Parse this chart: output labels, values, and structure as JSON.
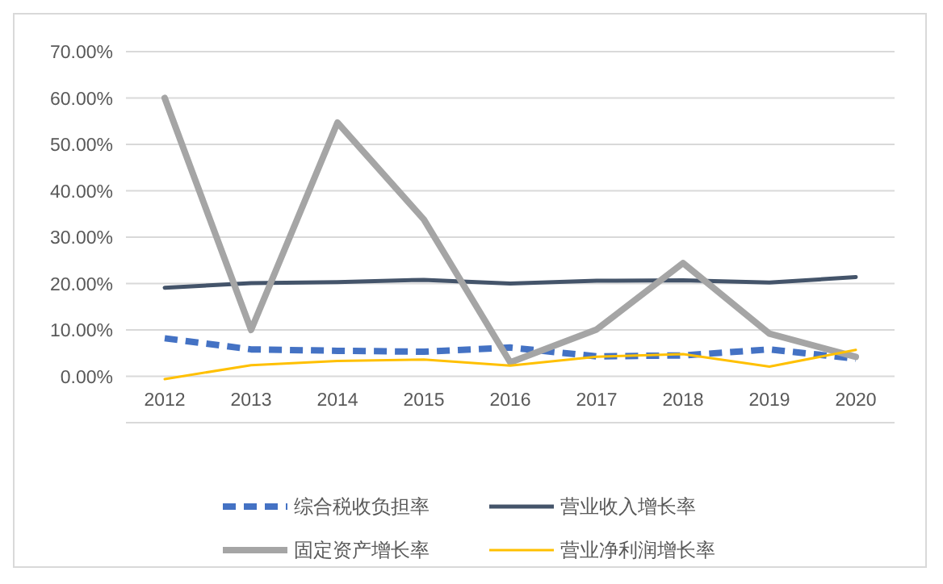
{
  "chart_data": {
    "type": "line",
    "categories": [
      "2012",
      "2013",
      "2014",
      "2015",
      "2016",
      "2017",
      "2018",
      "2019",
      "2020"
    ],
    "series": [
      {
        "name": "综合税收负担率",
        "color": "#4472c4",
        "line_style": "dashed",
        "values": [
          8.2,
          5.8,
          5.5,
          5.3,
          6.2,
          4.3,
          4.5,
          5.8,
          3.8
        ]
      },
      {
        "name": "营业收入增长率",
        "color": "#44546a",
        "line_style": "solid",
        "values": [
          19.1,
          20.1,
          20.3,
          20.8,
          20.0,
          20.6,
          20.7,
          20.2,
          21.4
        ]
      },
      {
        "name": "固定资产增长率",
        "color": "#a5a5a5",
        "line_style": "solid",
        "values": [
          60.0,
          10.0,
          54.7,
          33.8,
          3.0,
          10.1,
          24.4,
          9.2,
          4.2
        ]
      },
      {
        "name": "营业净利润增长率",
        "color": "#ffc000",
        "line_style": "solid",
        "values": [
          -0.6,
          2.4,
          3.3,
          3.6,
          2.3,
          4.2,
          4.8,
          2.1,
          5.7
        ]
      }
    ],
    "ylim": [
      -10,
      70
    ],
    "yticks": [
      {
        "value": -10,
        "label": null
      },
      {
        "value": 0,
        "label": "0.00%"
      },
      {
        "value": 10,
        "label": "10.00%"
      },
      {
        "value": 20,
        "label": "20.00%"
      },
      {
        "value": 30,
        "label": "30.00%"
      },
      {
        "value": 40,
        "label": "40.00%"
      },
      {
        "value": 50,
        "label": "50.00%"
      },
      {
        "value": 60,
        "label": "60.00%"
      },
      {
        "value": 70,
        "label": "70.00%"
      }
    ],
    "grid": "y",
    "legend": "bottom",
    "marker": "none"
  }
}
